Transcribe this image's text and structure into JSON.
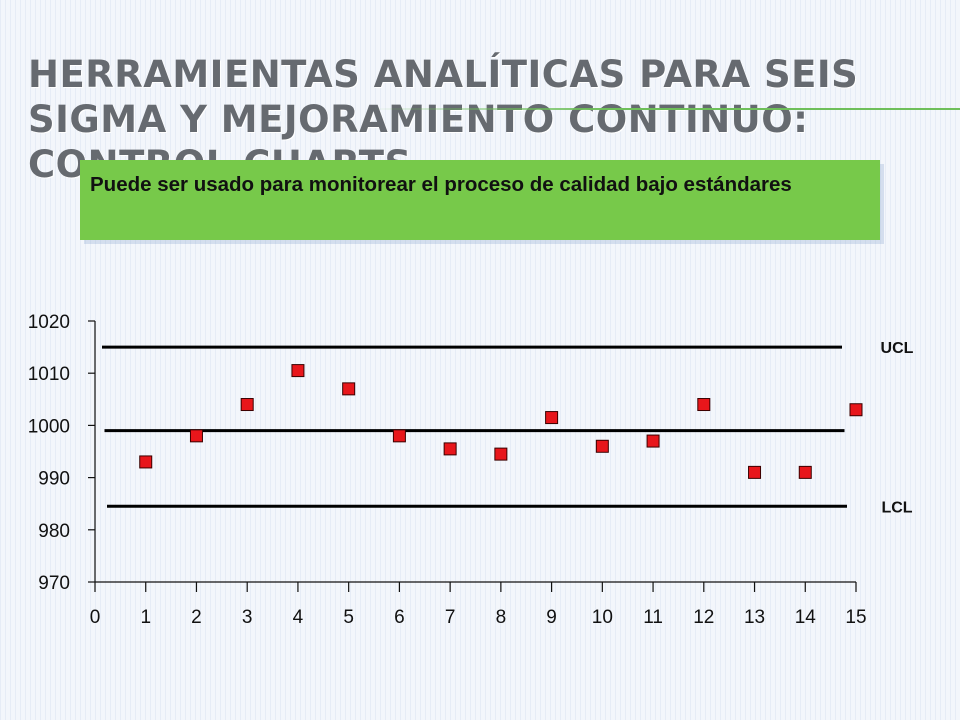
{
  "slide": {
    "title": "Herramientas analíticas para Seis Sigma y mejoramiento continuo: control charts",
    "callout": "Puede ser usado para monitorear el proceso de calidad bajo estándares"
  },
  "colors": {
    "marker": "#e8161b",
    "callout_bg": "#77c94a",
    "title": "#666a70"
  },
  "chart_data": {
    "type": "scatter",
    "x": [
      1,
      2,
      3,
      4,
      5,
      6,
      7,
      8,
      9,
      10,
      11,
      12,
      13,
      14,
      15
    ],
    "y": [
      993,
      998,
      1004,
      1010.5,
      1007,
      998,
      995.5,
      994.5,
      1001.5,
      996,
      997,
      1004,
      991,
      991,
      1003
    ],
    "xlim": [
      0,
      15
    ],
    "ylim": [
      970,
      1020
    ],
    "xticks": [
      0,
      1,
      2,
      3,
      4,
      5,
      6,
      7,
      8,
      9,
      10,
      11,
      12,
      13,
      14,
      15
    ],
    "yticks": [
      970,
      980,
      990,
      1000,
      1010,
      1020
    ],
    "control_lines": [
      {
        "name": "UCL",
        "value": 1015
      },
      {
        "name": "",
        "value": 999
      },
      {
        "name": "LCL",
        "value": 984.5
      }
    ],
    "grid": false,
    "legend": "none"
  }
}
